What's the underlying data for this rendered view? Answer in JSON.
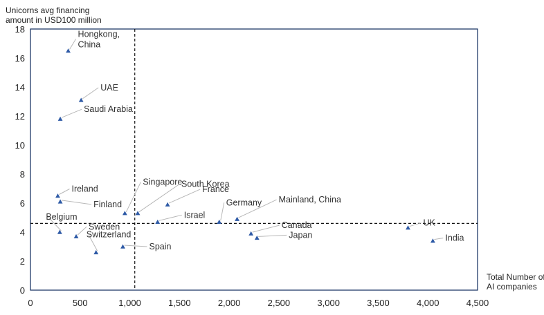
{
  "chart_data": {
    "type": "scatter",
    "title": "",
    "ylabel": "Unicorns avg financing\namount in USD100 million",
    "xlabel": "Total Number of\nAI companies",
    "xlim": [
      0,
      4500
    ],
    "ylim": [
      0,
      18
    ],
    "xticks": [
      0,
      500,
      1000,
      1500,
      2000,
      2500,
      3000,
      3500,
      4000,
      4500
    ],
    "yticks": [
      0,
      2,
      4,
      6,
      8,
      10,
      12,
      14,
      16,
      18
    ],
    "xtick_labels": [
      "0",
      "500",
      "1,000",
      "1,500",
      "2,000",
      "2,500",
      "3,000",
      "3,500",
      "4,000",
      "4,500"
    ],
    "ytick_labels": [
      "0",
      "2",
      "4",
      "6",
      "8",
      "10",
      "12",
      "14",
      "16",
      "18"
    ],
    "grid": false,
    "reference_lines": {
      "x": 1050,
      "y": 4.6
    },
    "marker_color": "#2e5aa6",
    "points": [
      {
        "label": "Hongkong,\nChina",
        "x": 380,
        "y": 16.5
      },
      {
        "label": "UAE",
        "x": 510,
        "y": 13.1
      },
      {
        "label": "Saudi Arabia",
        "x": 300,
        "y": 11.8
      },
      {
        "label": "Ireland",
        "x": 275,
        "y": 6.5
      },
      {
        "label": "Finland",
        "x": 300,
        "y": 6.1
      },
      {
        "label": "Belgium",
        "x": 295,
        "y": 4.0
      },
      {
        "label": "Sweden",
        "x": 460,
        "y": 3.7
      },
      {
        "label": "Switzerland",
        "x": 660,
        "y": 2.6
      },
      {
        "label": "Singapore",
        "x": 950,
        "y": 5.3
      },
      {
        "label": "Spain",
        "x": 930,
        "y": 3.0
      },
      {
        "label": "South Korea",
        "x": 1080,
        "y": 5.3
      },
      {
        "label": "France",
        "x": 1380,
        "y": 5.9
      },
      {
        "label": "Israel",
        "x": 1280,
        "y": 4.7
      },
      {
        "label": "Germany",
        "x": 1900,
        "y": 4.7
      },
      {
        "label": "Mainland, China",
        "x": 2080,
        "y": 4.9
      },
      {
        "label": "Canada",
        "x": 2220,
        "y": 3.9
      },
      {
        "label": "Japan",
        "x": 2280,
        "y": 3.6
      },
      {
        "label": "UK",
        "x": 3800,
        "y": 4.3
      },
      {
        "label": "India",
        "x": 4050,
        "y": 3.4
      }
    ]
  }
}
